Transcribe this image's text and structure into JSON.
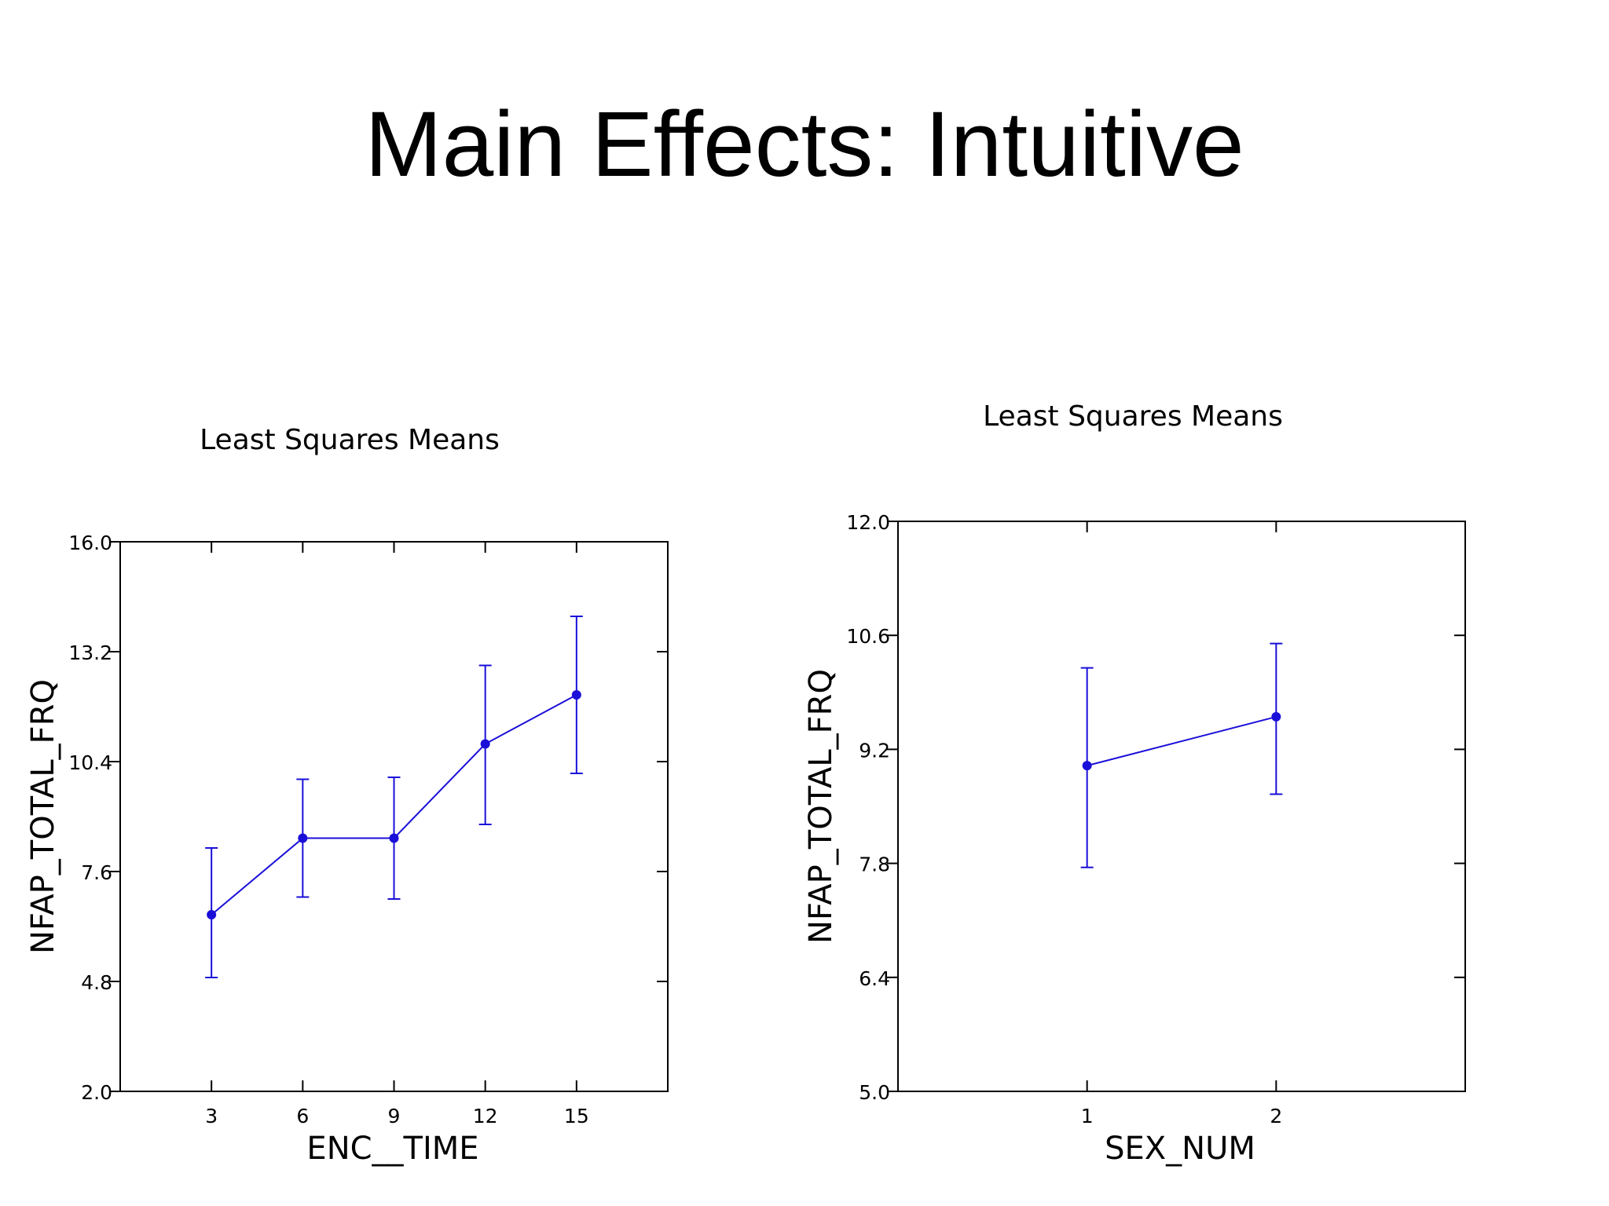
{
  "slide": {
    "title": "Main Effects: Intuitive"
  },
  "colors": {
    "series": "#1a0fd8",
    "axis": "#000000"
  },
  "chart_data": [
    {
      "type": "line",
      "title": "Least Squares Means",
      "xlabel": "ENC__TIME",
      "ylabel": "NFAP_TOTAL_FRQ",
      "xlim": [
        0,
        18
      ],
      "ylim": [
        2.0,
        16.0
      ],
      "xticks": [
        3,
        6,
        9,
        12,
        15
      ],
      "xtick_labels": [
        "3",
        "6",
        "9",
        "12",
        "15"
      ],
      "yticks": [
        2.0,
        4.8,
        7.6,
        10.4,
        13.2,
        16.0
      ],
      "ytick_labels": [
        "2.0",
        "4.8",
        "7.6",
        "10.4",
        "13.2",
        "16.0"
      ],
      "grid": false,
      "points": [
        {
          "x": 3,
          "y": 6.5,
          "low": 4.9,
          "high": 8.2
        },
        {
          "x": 6,
          "y": 8.45,
          "low": 6.95,
          "high": 9.95
        },
        {
          "x": 9,
          "y": 8.45,
          "low": 6.9,
          "high": 10.0
        },
        {
          "x": 12,
          "y": 10.85,
          "low": 8.8,
          "high": 12.85
        },
        {
          "x": 15,
          "y": 12.1,
          "low": 10.1,
          "high": 14.1
        }
      ]
    },
    {
      "type": "line",
      "title": "Least Squares Means",
      "xlabel": "SEX_NUM",
      "ylabel": "NFAP_TOTAL_FRQ",
      "xlim": [
        0,
        3
      ],
      "ylim": [
        5.0,
        12.0
      ],
      "xticks": [
        1,
        2
      ],
      "xtick_labels": [
        "1",
        "2"
      ],
      "yticks": [
        5.0,
        6.4,
        7.8,
        9.2,
        10.6,
        12.0
      ],
      "ytick_labels": [
        "5.0",
        "6.4",
        "7.8",
        "9.2",
        "10.6",
        "12.0"
      ],
      "grid": false,
      "points": [
        {
          "x": 1,
          "y": 9.0,
          "low": 7.75,
          "high": 10.2
        },
        {
          "x": 2,
          "y": 9.6,
          "low": 8.65,
          "high": 10.5
        }
      ]
    }
  ]
}
